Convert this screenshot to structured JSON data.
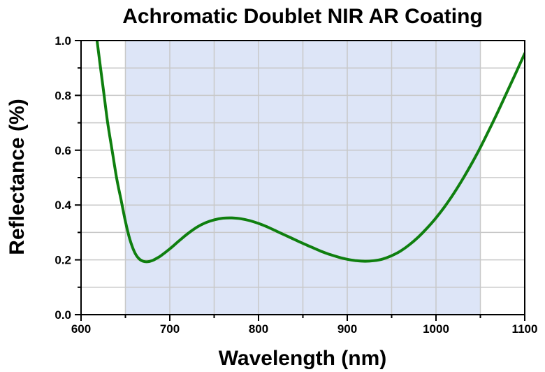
{
  "chart_data": {
    "type": "line",
    "title": "Achromatic Doublet NIR AR Coating",
    "xlabel": "Wavelength (nm)",
    "ylabel": "Reflectance (%)",
    "xlim": [
      600,
      1100
    ],
    "ylim": [
      0.0,
      1.0
    ],
    "x_ticks": [
      600,
      700,
      800,
      900,
      1000,
      1100
    ],
    "y_ticks": [
      0.0,
      0.2,
      0.4,
      0.6,
      0.8,
      1.0
    ],
    "x_tick_labels": [
      "600",
      "700",
      "800",
      "900",
      "1000",
      "1100"
    ],
    "y_tick_labels": [
      "0.0",
      "0.2",
      "0.4",
      "0.6",
      "0.8",
      "1.0"
    ],
    "grid": true,
    "shaded_band": {
      "x_start": 650,
      "x_end": 1050,
      "color": "#dde5f7"
    },
    "series": [
      {
        "color": "#0f7f0f",
        "x": [
          618,
          622,
          626,
          630,
          635,
          640,
          645,
          650,
          655,
          660,
          665,
          670,
          675,
          680,
          685,
          690,
          700,
          710,
          720,
          730,
          740,
          750,
          760,
          770,
          780,
          790,
          800,
          810,
          820,
          830,
          840,
          850,
          860,
          870,
          880,
          890,
          900,
          910,
          920,
          930,
          940,
          950,
          960,
          970,
          980,
          990,
          1000,
          1010,
          1020,
          1030,
          1040,
          1050,
          1060,
          1070,
          1080,
          1090,
          1100
        ],
        "y": [
          1.0,
          0.9,
          0.8,
          0.7,
          0.6,
          0.5,
          0.42,
          0.34,
          0.275,
          0.23,
          0.205,
          0.195,
          0.193,
          0.197,
          0.205,
          0.215,
          0.24,
          0.268,
          0.295,
          0.318,
          0.335,
          0.346,
          0.352,
          0.353,
          0.35,
          0.343,
          0.333,
          0.32,
          0.305,
          0.29,
          0.275,
          0.26,
          0.246,
          0.232,
          0.22,
          0.21,
          0.202,
          0.197,
          0.195,
          0.197,
          0.203,
          0.215,
          0.232,
          0.255,
          0.283,
          0.316,
          0.353,
          0.395,
          0.442,
          0.494,
          0.55,
          0.61,
          0.675,
          0.742,
          0.812,
          0.882,
          0.953
        ]
      }
    ]
  }
}
